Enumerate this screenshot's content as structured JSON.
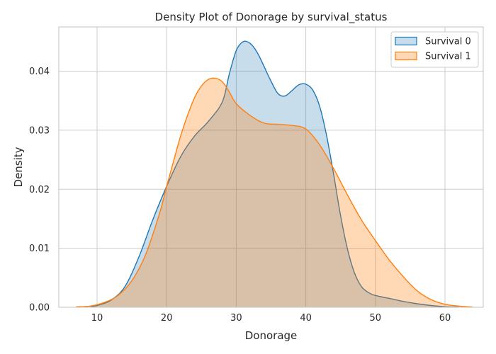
{
  "chart_data": {
    "type": "area",
    "title": "Density Plot of Donorage by survival_status",
    "xlabel": "Donorage",
    "ylabel": "Density",
    "xlim": [
      4.5,
      65.5
    ],
    "ylim": [
      0,
      0.0475
    ],
    "xticks": [
      10,
      20,
      30,
      40,
      50,
      60
    ],
    "yticks": [
      0.0,
      0.01,
      0.02,
      0.03,
      0.04
    ],
    "ytick_labels": [
      "0.00",
      "0.01",
      "0.02",
      "0.03",
      "0.04"
    ],
    "grid": true,
    "legend_position": "top-right",
    "series": [
      {
        "name": "Survival 0",
        "color": "#1f77b4",
        "fill_opacity": 0.25,
        "x": [
          9,
          10,
          12,
          14,
          16,
          18,
          20,
          22,
          24,
          26,
          28,
          29,
          30,
          31,
          32,
          33,
          34,
          35,
          36,
          37,
          38,
          39,
          40,
          41,
          42,
          43,
          44,
          45,
          46,
          47,
          48,
          49,
          50,
          52,
          54,
          56,
          58,
          60,
          62
        ],
        "y": [
          0.0001,
          0.0003,
          0.0012,
          0.0035,
          0.0085,
          0.0148,
          0.0205,
          0.0255,
          0.029,
          0.0315,
          0.0348,
          0.0395,
          0.0435,
          0.045,
          0.0447,
          0.0432,
          0.0408,
          0.0383,
          0.0362,
          0.0358,
          0.0367,
          0.0377,
          0.0378,
          0.0368,
          0.034,
          0.029,
          0.0225,
          0.0155,
          0.0098,
          0.0058,
          0.0035,
          0.0025,
          0.002,
          0.0015,
          0.001,
          0.0006,
          0.0003,
          0.0001,
          4e-05
        ]
      },
      {
        "name": "Survival 1",
        "color": "#ff7f0e",
        "fill_opacity": 0.3,
        "x": [
          7,
          9,
          11,
          13,
          15,
          17,
          19,
          20,
          21,
          22,
          23,
          24,
          25,
          26,
          27,
          28,
          29,
          30,
          32,
          34,
          36,
          38,
          40,
          42,
          44,
          46,
          48,
          50,
          52,
          54,
          56,
          58,
          60,
          62,
          64
        ],
        "y": [
          0.0001,
          0.0002,
          0.0008,
          0.002,
          0.0045,
          0.009,
          0.016,
          0.0205,
          0.0248,
          0.029,
          0.0325,
          0.0355,
          0.0375,
          0.0386,
          0.0388,
          0.0382,
          0.0365,
          0.0345,
          0.0325,
          0.0312,
          0.031,
          0.0308,
          0.0302,
          0.0275,
          0.0235,
          0.019,
          0.0148,
          0.0113,
          0.008,
          0.0052,
          0.0028,
          0.0013,
          0.0005,
          0.0002,
          5e-05
        ]
      }
    ]
  }
}
